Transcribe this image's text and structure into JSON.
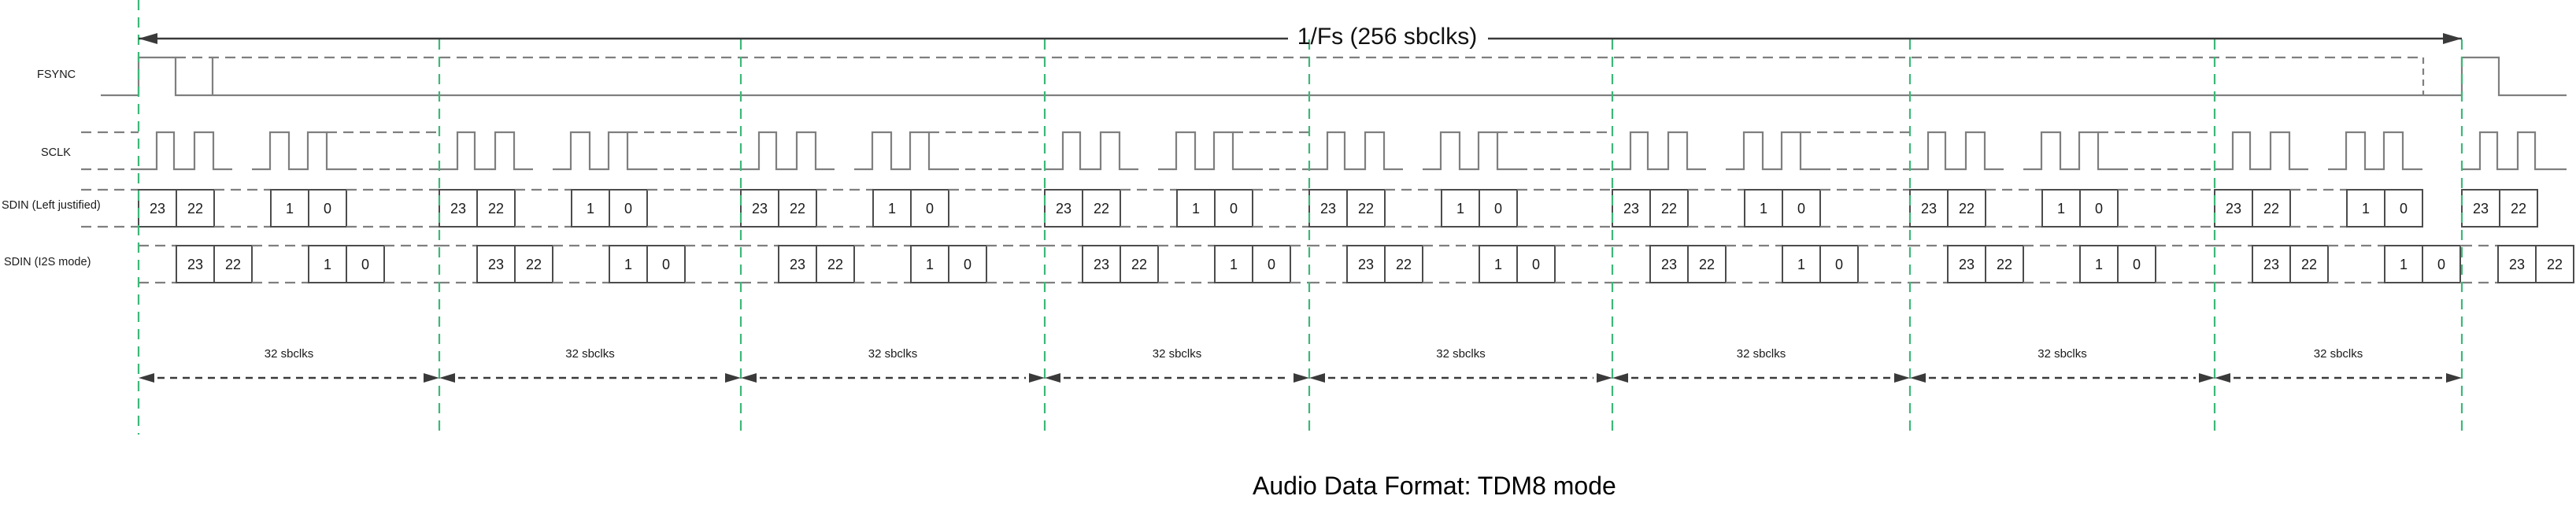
{
  "period_annotation": "1/Fs (256 sbclks)",
  "signals": [
    {
      "label": "FSYNC"
    },
    {
      "label": "SCLK"
    },
    {
      "label": "SDIN (Left justified)"
    },
    {
      "label": "SDIN (I2S mode)"
    }
  ],
  "frames": {
    "count": 8,
    "width_label": "32 sbclks"
  },
  "bit_cells": [
    "23",
    "22",
    "1",
    "0"
  ],
  "partial_frame_bit_cells": [
    "23",
    "22"
  ],
  "caption": "Audio Data Format: TDM8 mode",
  "colors": {
    "background": "#ffffff",
    "waveform": "#7f7f7f",
    "box_border": "#4c4c4c",
    "text": "#1a1a1a",
    "frame_line_green": "#3cb878",
    "dimension": "#3a3a3a"
  }
}
